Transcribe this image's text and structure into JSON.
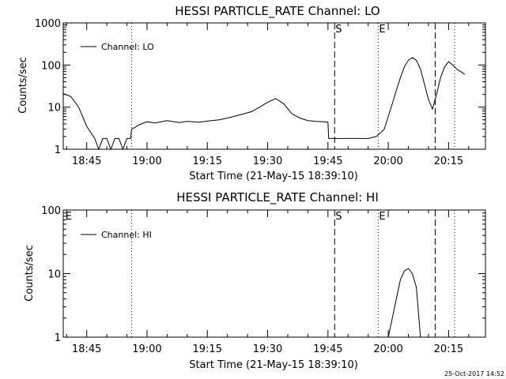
{
  "chart_data": [
    {
      "type": "line",
      "title": "HESSI PARTICLE_RATE Channel: LO",
      "xlabel": "Start Time (21-May-15 18:39:10)",
      "ylabel": "Counts/sec",
      "yscale": "log",
      "ylim": [
        1,
        1000
      ],
      "xlim": [
        "18:39:10",
        "20:24:10"
      ],
      "x_ticks": [
        "18:45",
        "19:00",
        "19:15",
        "19:30",
        "19:45",
        "20:00",
        "20:15"
      ],
      "y_ticks": [
        "1",
        "10",
        "100",
        "1000"
      ],
      "legend": {
        "label": "Channel: LO",
        "placement": "top-left"
      },
      "markers": [
        {
          "time": "19:46:40",
          "style": "dashed",
          "label": "S"
        },
        {
          "time": "19:57:30",
          "style": "dotted",
          "label": "E"
        },
        {
          "time": "20:11:40",
          "style": "dashed",
          "label": ""
        },
        {
          "time": "20:16:30",
          "style": "dotted",
          "label": ""
        },
        {
          "time": "18:56:10",
          "style": "dotted",
          "label": ""
        }
      ],
      "series": [
        {
          "name": "Channel: LO",
          "x": [
            "18:39:10",
            "18:41:00",
            "18:43:00",
            "18:45:00",
            "18:47:00",
            "18:48:00",
            "18:49:00",
            "18:50:00",
            "18:51:00",
            "18:52:00",
            "18:53:00",
            "18:54:00",
            "18:55:00",
            "18:55:55",
            "18:56:10",
            "18:57:00",
            "18:58:00",
            "19:00:00",
            "19:02:00",
            "19:05:00",
            "19:08:00",
            "19:10:00",
            "19:13:00",
            "19:16:00",
            "19:18:00",
            "19:20:00",
            "19:23:00",
            "19:26:00",
            "19:28:00",
            "19:30:00",
            "19:32:00",
            "19:34:00",
            "19:36:00",
            "19:38:00",
            "19:40:00",
            "19:42:00",
            "19:44:00",
            "19:45:00",
            "19:45:10",
            "19:47:00",
            "19:50:00",
            "19:53:00",
            "19:55:00",
            "19:57:00",
            "19:57:30",
            "19:59:00",
            "20:00:00",
            "20:01:00",
            "20:02:00",
            "20:03:00",
            "20:04:00",
            "20:05:00",
            "20:06:00",
            "20:07:00",
            "20:08:00",
            "20:09:00",
            "20:10:00",
            "20:11:00",
            "20:12:00",
            "20:13:00",
            "20:14:00",
            "20:15:00",
            "20:16:00",
            "20:17:00",
            "20:18:00",
            "20:19:00"
          ],
          "values": [
            21,
            18,
            10,
            3.5,
            1.8,
            1,
            1.8,
            1.8,
            1,
            1.8,
            1.8,
            1,
            1.8,
            1.8,
            3,
            3.3,
            3.8,
            4.5,
            4.2,
            4.8,
            4.3,
            4.6,
            4.4,
            4.8,
            5,
            5.5,
            6.5,
            7.8,
            10,
            13,
            16,
            12,
            7,
            5.5,
            4.8,
            4.6,
            4.5,
            4.4,
            1.8,
            1.8,
            1.8,
            1.8,
            1.8,
            2,
            2.2,
            3,
            6,
            12,
            25,
            50,
            90,
            130,
            150,
            130,
            80,
            35,
            15,
            9,
            20,
            50,
            90,
            120,
            100,
            80,
            70,
            60
          ]
        }
      ]
    },
    {
      "type": "line",
      "title": "HESSI PARTICLE_RATE Channel: HI",
      "xlabel": "Start Time (21-May-15 18:39:10)",
      "ylabel": "Counts/sec",
      "yscale": "log",
      "ylim": [
        1,
        100
      ],
      "xlim": [
        "18:39:10",
        "20:24:10"
      ],
      "x_ticks": [
        "18:45",
        "19:00",
        "19:15",
        "19:30",
        "19:45",
        "20:00",
        "20:15"
      ],
      "y_ticks": [
        "1",
        "10",
        "100"
      ],
      "legend": {
        "label": "Channel: HI",
        "placement": "top-left"
      },
      "markers": [
        {
          "time": "18:39:30",
          "style": "none",
          "label": "E"
        },
        {
          "time": "18:56:10",
          "style": "dotted",
          "label": ""
        },
        {
          "time": "19:46:40",
          "style": "dashed",
          "label": "S"
        },
        {
          "time": "19:57:30",
          "style": "dotted",
          "label": "E"
        },
        {
          "time": "20:11:40",
          "style": "dashed",
          "label": ""
        },
        {
          "time": "20:16:30",
          "style": "dotted",
          "label": ""
        }
      ],
      "series": [
        {
          "name": "Channel: HI",
          "x": [
            "20:00:00",
            "20:01:00",
            "20:02:00",
            "20:03:00",
            "20:04:00",
            "20:05:00",
            "20:06:00",
            "20:07:00",
            "20:08:00"
          ],
          "values": [
            1,
            2,
            4,
            8,
            11,
            12,
            10,
            6,
            1
          ]
        }
      ]
    }
  ],
  "footer": {
    "timestamp": "25-Oct-2017 14:52"
  }
}
